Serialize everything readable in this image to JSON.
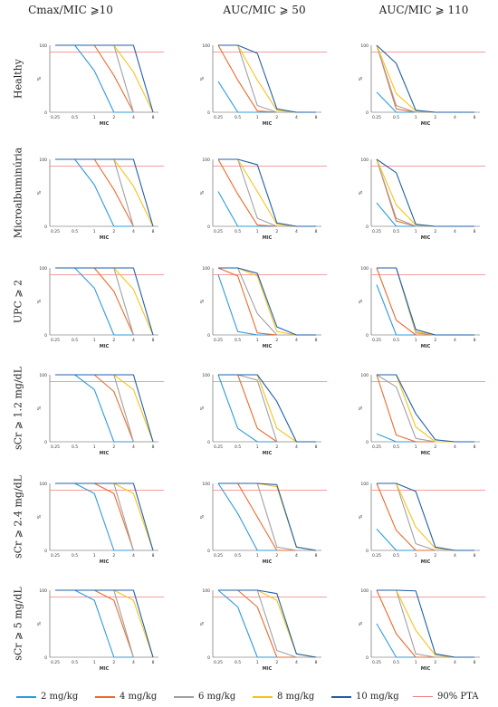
{
  "columns": [
    "Cmax/MIC ⩾10",
    "AUC/MIC ⩾ 50",
    "AUC/MIC ⩾ 110"
  ],
  "rows": [
    "Healthy",
    "Microalbuminúria",
    "UPC ⩾ 2",
    "sCr ⩾ 1.2 mg/dL",
    "sCr ⩾ 2.4 mg/dL",
    "sCr ⩾ 5 mg/dL"
  ],
  "legend": [
    {
      "label": "2 mg/kg",
      "color": "#2f9bdc"
    },
    {
      "label": "4 mg/kg",
      "color": "#ec6a2c"
    },
    {
      "label": "6 mg/kg",
      "color": "#a0a0a0"
    },
    {
      "label": "8 mg/kg",
      "color": "#f7c21a"
    },
    {
      "label": "10 mg/kg",
      "color": "#1f5fa8"
    },
    {
      "label": "90% PTA",
      "color": "#ef7f7f"
    }
  ],
  "chart_data": {
    "type": "line",
    "x": [
      "0.25",
      "0.5",
      "1",
      "2",
      "4",
      "8"
    ],
    "xlabel": "MIC",
    "ylabel": "%",
    "ylim": [
      0,
      100
    ],
    "y_ticks": [
      "0",
      "100"
    ],
    "target_line": 90,
    "series_names": [
      "2 mg/kg",
      "4 mg/kg",
      "6 mg/kg",
      "8 mg/kg",
      "10 mg/kg"
    ],
    "panels": [
      {
        "row": 0,
        "col": 0,
        "series": [
          [
            100,
            100,
            62,
            0,
            0,
            0
          ],
          [
            100,
            100,
            100,
            55,
            0,
            0
          ],
          [
            100,
            100,
            100,
            100,
            0,
            0
          ],
          [
            100,
            100,
            100,
            100,
            60,
            0
          ],
          [
            100,
            100,
            100,
            100,
            100,
            0
          ]
        ]
      },
      {
        "row": 0,
        "col": 1,
        "series": [
          [
            46,
            0,
            0,
            0,
            0,
            0
          ],
          [
            100,
            48,
            2,
            0,
            0,
            0
          ],
          [
            100,
            100,
            10,
            0,
            0,
            0
          ],
          [
            100,
            100,
            48,
            3,
            0,
            0
          ],
          [
            100,
            100,
            88,
            5,
            0,
            0
          ]
        ]
      },
      {
        "row": 0,
        "col": 2,
        "series": [
          [
            30,
            0,
            0,
            0,
            0,
            0
          ],
          [
            100,
            5,
            0,
            0,
            0,
            0
          ],
          [
            100,
            10,
            0,
            0,
            0,
            0
          ],
          [
            100,
            28,
            2,
            0,
            0,
            0
          ],
          [
            100,
            73,
            3,
            0,
            0,
            0
          ]
        ]
      },
      {
        "row": 1,
        "col": 0,
        "series": [
          [
            100,
            100,
            62,
            0,
            0,
            0
          ],
          [
            100,
            100,
            100,
            55,
            0,
            0
          ],
          [
            100,
            100,
            100,
            100,
            0,
            0
          ],
          [
            100,
            100,
            100,
            100,
            60,
            0
          ],
          [
            100,
            100,
            100,
            100,
            100,
            0
          ]
        ]
      },
      {
        "row": 1,
        "col": 1,
        "series": [
          [
            52,
            0,
            0,
            0,
            0,
            0
          ],
          [
            100,
            48,
            2,
            0,
            0,
            0
          ],
          [
            100,
            100,
            12,
            0,
            0,
            0
          ],
          [
            100,
            100,
            52,
            3,
            0,
            0
          ],
          [
            100,
            100,
            92,
            5,
            0,
            0
          ]
        ]
      },
      {
        "row": 1,
        "col": 2,
        "series": [
          [
            35,
            0,
            0,
            0,
            0,
            0
          ],
          [
            100,
            8,
            0,
            0,
            0,
            0
          ],
          [
            100,
            12,
            0,
            0,
            0,
            0
          ],
          [
            100,
            32,
            2,
            0,
            0,
            0
          ],
          [
            100,
            80,
            3,
            0,
            0,
            0
          ]
        ]
      },
      {
        "row": 2,
        "col": 0,
        "series": [
          [
            100,
            100,
            70,
            0,
            0,
            0
          ],
          [
            100,
            100,
            100,
            65,
            0,
            0
          ],
          [
            100,
            100,
            100,
            100,
            0,
            0
          ],
          [
            100,
            100,
            100,
            100,
            68,
            0
          ],
          [
            100,
            100,
            100,
            100,
            100,
            0
          ]
        ]
      },
      {
        "row": 2,
        "col": 1,
        "series": [
          [
            90,
            5,
            0,
            0,
            0,
            0
          ],
          [
            100,
            88,
            3,
            0,
            0,
            0
          ],
          [
            100,
            100,
            32,
            0,
            0,
            0
          ],
          [
            100,
            100,
            88,
            5,
            0,
            0
          ],
          [
            100,
            100,
            92,
            12,
            0,
            0
          ]
        ]
      },
      {
        "row": 2,
        "col": 2,
        "series": [
          [
            75,
            0,
            0,
            0,
            0,
            0
          ],
          [
            100,
            22,
            0,
            0,
            0,
            0
          ],
          [
            100,
            100,
            3,
            0,
            0,
            0
          ],
          [
            100,
            100,
            5,
            0,
            0,
            0
          ],
          [
            100,
            100,
            8,
            0,
            0,
            0
          ]
        ]
      },
      {
        "row": 3,
        "col": 0,
        "series": [
          [
            100,
            100,
            78,
            0,
            0,
            0
          ],
          [
            100,
            100,
            100,
            75,
            0,
            0
          ],
          [
            100,
            100,
            100,
            100,
            0,
            0
          ],
          [
            100,
            100,
            100,
            100,
            78,
            0
          ],
          [
            100,
            100,
            100,
            100,
            100,
            0
          ]
        ]
      },
      {
        "row": 3,
        "col": 1,
        "series": [
          [
            100,
            20,
            0,
            0,
            0,
            0
          ],
          [
            100,
            100,
            20,
            0,
            0,
            0
          ],
          [
            100,
            100,
            92,
            0,
            0,
            0
          ],
          [
            100,
            100,
            100,
            20,
            0,
            0
          ],
          [
            100,
            100,
            100,
            60,
            0,
            0
          ]
        ]
      },
      {
        "row": 3,
        "col": 2,
        "series": [
          [
            12,
            0,
            0,
            0,
            0,
            0
          ],
          [
            100,
            10,
            0,
            0,
            0,
            0
          ],
          [
            100,
            82,
            5,
            0,
            0,
            0
          ],
          [
            100,
            100,
            22,
            0,
            0,
            0
          ],
          [
            100,
            100,
            42,
            3,
            0,
            0
          ]
        ]
      },
      {
        "row": 4,
        "col": 0,
        "series": [
          [
            100,
            100,
            85,
            0,
            0,
            0
          ],
          [
            100,
            100,
            100,
            85,
            0,
            0
          ],
          [
            100,
            100,
            100,
            100,
            0,
            0
          ],
          [
            100,
            100,
            100,
            100,
            85,
            0
          ],
          [
            100,
            100,
            100,
            100,
            100,
            0
          ]
        ]
      },
      {
        "row": 4,
        "col": 1,
        "series": [
          [
            100,
            55,
            0,
            0,
            0,
            0
          ],
          [
            100,
            100,
            50,
            0,
            0,
            0
          ],
          [
            100,
            100,
            100,
            5,
            0,
            0
          ],
          [
            100,
            100,
            100,
            95,
            5,
            0
          ],
          [
            100,
            100,
            100,
            98,
            5,
            0
          ]
        ]
      },
      {
        "row": 4,
        "col": 2,
        "series": [
          [
            32,
            0,
            0,
            0,
            0,
            0
          ],
          [
            100,
            30,
            0,
            0,
            0,
            0
          ],
          [
            100,
            100,
            10,
            0,
            0,
            0
          ],
          [
            100,
            100,
            35,
            3,
            0,
            0
          ],
          [
            100,
            100,
            88,
            5,
            0,
            0
          ]
        ]
      },
      {
        "row": 5,
        "col": 0,
        "series": [
          [
            100,
            100,
            85,
            0,
            0,
            0
          ],
          [
            100,
            100,
            100,
            85,
            0,
            0
          ],
          [
            100,
            100,
            100,
            100,
            0,
            0
          ],
          [
            100,
            100,
            100,
            100,
            85,
            0
          ],
          [
            100,
            100,
            100,
            100,
            100,
            0
          ]
        ]
      },
      {
        "row": 5,
        "col": 1,
        "series": [
          [
            100,
            75,
            0,
            0,
            0,
            0
          ],
          [
            100,
            100,
            75,
            0,
            0,
            0
          ],
          [
            100,
            100,
            100,
            10,
            0,
            0
          ],
          [
            100,
            100,
            100,
            85,
            5,
            0
          ],
          [
            100,
            100,
            100,
            95,
            5,
            0
          ]
        ]
      },
      {
        "row": 5,
        "col": 2,
        "series": [
          [
            50,
            0,
            0,
            0,
            0,
            0
          ],
          [
            100,
            35,
            0,
            0,
            0,
            0
          ],
          [
            100,
            100,
            5,
            0,
            0,
            0
          ],
          [
            100,
            100,
            40,
            3,
            0,
            0
          ],
          [
            100,
            100,
            99,
            5,
            0,
            0
          ]
        ]
      }
    ]
  }
}
